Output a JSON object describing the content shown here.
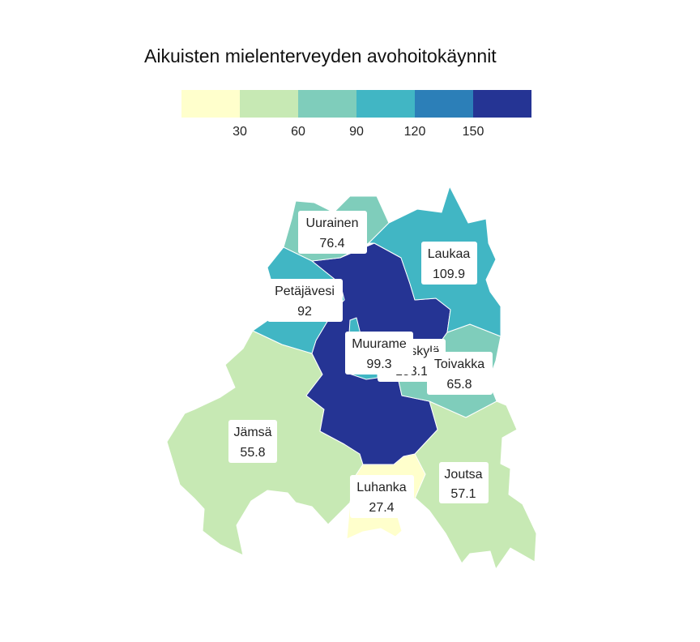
{
  "title": "Aikuisten mielenterveyden avohoitokäynnit",
  "legend": {
    "colors": [
      "#ffffcc",
      "#c7e9b4",
      "#7fcdbb",
      "#41b6c4",
      "#2c7fb8",
      "#253494"
    ],
    "ticks": [
      "30",
      "60",
      "90",
      "120",
      "150"
    ]
  },
  "regions": [
    {
      "name": "Jämsä",
      "value": "55.8",
      "color": "#c7e9b4"
    },
    {
      "name": "Joutsa",
      "value": "57.1",
      "color": "#c7e9b4"
    },
    {
      "name": "Luhanka",
      "value": "27.4",
      "color": "#ffffcc"
    },
    {
      "name": "Jyväskylä",
      "value": "153.1",
      "color": "#253494"
    },
    {
      "name": "Toivakka",
      "value": "65.8",
      "color": "#7fcdbb"
    },
    {
      "name": "Uurainen",
      "value": "76.4",
      "color": "#7fcdbb"
    },
    {
      "name": "Laukaa",
      "value": "109.9",
      "color": "#41b6c4"
    },
    {
      "name": "Petäjävesi",
      "value": "92",
      "color": "#41b6c4"
    },
    {
      "name": "Muurame",
      "value": "99.3",
      "color": "#41b6c4"
    }
  ]
}
